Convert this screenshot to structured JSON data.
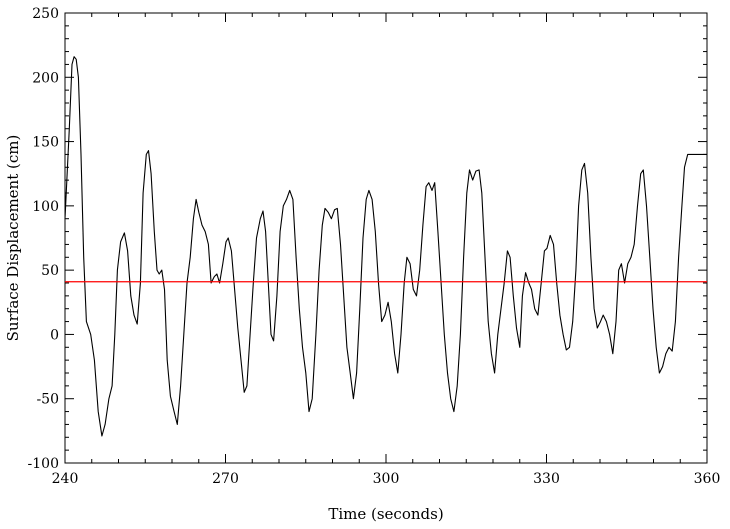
{
  "chart_data": {
    "type": "line",
    "title": "",
    "xlabel": "Time (seconds)",
    "ylabel": "Surface Displacement (cm)",
    "xlim": [
      240,
      360
    ],
    "ylim": [
      -100,
      250
    ],
    "x_ticks": [
      240,
      270,
      300,
      330,
      360
    ],
    "y_ticks": [
      -100,
      -50,
      0,
      50,
      100,
      150,
      200,
      250
    ],
    "grid": false,
    "reference_line": {
      "y": 41,
      "color": "#ff0000"
    },
    "series": [
      {
        "color": "#000000",
        "points": [
          [
            240.0,
            90
          ],
          [
            240.8,
            160
          ],
          [
            241.3,
            210
          ],
          [
            241.7,
            216
          ],
          [
            242.1,
            214
          ],
          [
            242.5,
            200
          ],
          [
            243.0,
            140
          ],
          [
            243.5,
            60
          ],
          [
            244.0,
            10
          ],
          [
            244.8,
            0
          ],
          [
            245.5,
            -20
          ],
          [
            246.2,
            -60
          ],
          [
            246.9,
            -79
          ],
          [
            247.5,
            -70
          ],
          [
            248.2,
            -50
          ],
          [
            248.8,
            -40
          ],
          [
            249.3,
            0
          ],
          [
            249.8,
            50
          ],
          [
            250.4,
            72
          ],
          [
            251.1,
            79
          ],
          [
            251.7,
            65
          ],
          [
            252.3,
            30
          ],
          [
            252.9,
            15
          ],
          [
            253.5,
            8
          ],
          [
            254.1,
            40
          ],
          [
            254.6,
            110
          ],
          [
            255.2,
            140
          ],
          [
            255.6,
            143
          ],
          [
            256.1,
            125
          ],
          [
            256.7,
            80
          ],
          [
            257.2,
            50
          ],
          [
            257.6,
            47
          ],
          [
            258.1,
            50
          ],
          [
            258.6,
            35
          ],
          [
            259.1,
            -20
          ],
          [
            259.7,
            -48
          ],
          [
            260.4,
            -60
          ],
          [
            261.0,
            -70
          ],
          [
            261.6,
            -40
          ],
          [
            262.2,
            0
          ],
          [
            262.8,
            40
          ],
          [
            263.4,
            60
          ],
          [
            264.0,
            90
          ],
          [
            264.5,
            105
          ],
          [
            265.0,
            95
          ],
          [
            265.6,
            85
          ],
          [
            266.2,
            80
          ],
          [
            266.8,
            70
          ],
          [
            267.3,
            40
          ],
          [
            267.9,
            45
          ],
          [
            268.4,
            47
          ],
          [
            268.9,
            40
          ],
          [
            269.5,
            55
          ],
          [
            270.1,
            72
          ],
          [
            270.5,
            75
          ],
          [
            271.1,
            65
          ],
          [
            271.7,
            35
          ],
          [
            272.3,
            5
          ],
          [
            272.9,
            -20
          ],
          [
            273.5,
            -45
          ],
          [
            274.0,
            -40
          ],
          [
            274.6,
            0
          ],
          [
            275.2,
            40
          ],
          [
            275.8,
            75
          ],
          [
            276.5,
            90
          ],
          [
            277.0,
            96
          ],
          [
            277.5,
            80
          ],
          [
            278.0,
            40
          ],
          [
            278.5,
            0
          ],
          [
            279.0,
            -5
          ],
          [
            279.6,
            30
          ],
          [
            280.2,
            80
          ],
          [
            280.8,
            100
          ],
          [
            281.4,
            105
          ],
          [
            282.0,
            112
          ],
          [
            282.6,
            105
          ],
          [
            283.2,
            60
          ],
          [
            283.8,
            20
          ],
          [
            284.4,
            -10
          ],
          [
            285.0,
            -30
          ],
          [
            285.6,
            -60
          ],
          [
            286.2,
            -50
          ],
          [
            286.9,
            0
          ],
          [
            287.5,
            50
          ],
          [
            288.1,
            85
          ],
          [
            288.6,
            98
          ],
          [
            289.2,
            95
          ],
          [
            289.8,
            90
          ],
          [
            290.4,
            97
          ],
          [
            290.9,
            98
          ],
          [
            291.5,
            70
          ],
          [
            292.1,
            30
          ],
          [
            292.7,
            -10
          ],
          [
            293.3,
            -30
          ],
          [
            293.9,
            -50
          ],
          [
            294.5,
            -30
          ],
          [
            295.1,
            20
          ],
          [
            295.7,
            75
          ],
          [
            296.3,
            105
          ],
          [
            296.8,
            112
          ],
          [
            297.4,
            105
          ],
          [
            298.0,
            80
          ],
          [
            298.6,
            40
          ],
          [
            299.2,
            10
          ],
          [
            299.8,
            15
          ],
          [
            300.4,
            25
          ],
          [
            301.0,
            10
          ],
          [
            301.6,
            -15
          ],
          [
            302.2,
            -30
          ],
          [
            302.8,
            0
          ],
          [
            303.4,
            40
          ],
          [
            303.9,
            60
          ],
          [
            304.5,
            55
          ],
          [
            305.1,
            35
          ],
          [
            305.7,
            30
          ],
          [
            306.3,
            50
          ],
          [
            306.9,
            85
          ],
          [
            307.5,
            115
          ],
          [
            308.0,
            118
          ],
          [
            308.6,
            112
          ],
          [
            309.1,
            118
          ],
          [
            309.7,
            80
          ],
          [
            310.3,
            40
          ],
          [
            310.9,
            0
          ],
          [
            311.5,
            -30
          ],
          [
            312.1,
            -50
          ],
          [
            312.7,
            -60
          ],
          [
            313.3,
            -40
          ],
          [
            313.9,
            0
          ],
          [
            314.5,
            60
          ],
          [
            315.1,
            110
          ],
          [
            315.6,
            128
          ],
          [
            316.2,
            120
          ],
          [
            316.8,
            127
          ],
          [
            317.4,
            128
          ],
          [
            317.9,
            110
          ],
          [
            318.5,
            60
          ],
          [
            319.1,
            10
          ],
          [
            319.7,
            -15
          ],
          [
            320.3,
            -30
          ],
          [
            320.9,
            0
          ],
          [
            321.5,
            20
          ],
          [
            322.1,
            40
          ],
          [
            322.7,
            65
          ],
          [
            323.2,
            60
          ],
          [
            323.8,
            30
          ],
          [
            324.4,
            5
          ],
          [
            325.0,
            -10
          ],
          [
            325.5,
            30
          ],
          [
            326.1,
            48
          ],
          [
            326.7,
            40
          ],
          [
            327.2,
            35
          ],
          [
            327.8,
            20
          ],
          [
            328.4,
            15
          ],
          [
            329.0,
            40
          ],
          [
            329.6,
            65
          ],
          [
            330.1,
            67
          ],
          [
            330.7,
            77
          ],
          [
            331.3,
            70
          ],
          [
            331.9,
            40
          ],
          [
            332.5,
            15
          ],
          [
            333.1,
            0
          ],
          [
            333.7,
            -12
          ],
          [
            334.3,
            -10
          ],
          [
            334.9,
            10
          ],
          [
            335.5,
            50
          ],
          [
            336.0,
            100
          ],
          [
            336.6,
            128
          ],
          [
            337.1,
            133
          ],
          [
            337.7,
            110
          ],
          [
            338.3,
            60
          ],
          [
            338.9,
            20
          ],
          [
            339.5,
            5
          ],
          [
            340.1,
            10
          ],
          [
            340.6,
            15
          ],
          [
            341.2,
            10
          ],
          [
            341.8,
            0
          ],
          [
            342.4,
            -15
          ],
          [
            343.0,
            10
          ],
          [
            343.5,
            50
          ],
          [
            344.0,
            55
          ],
          [
            344.6,
            40
          ],
          [
            345.2,
            55
          ],
          [
            345.8,
            60
          ],
          [
            346.4,
            70
          ],
          [
            347.0,
            100
          ],
          [
            347.6,
            125
          ],
          [
            348.1,
            128
          ],
          [
            348.7,
            100
          ],
          [
            349.3,
            60
          ],
          [
            349.9,
            20
          ],
          [
            350.5,
            -10
          ],
          [
            351.1,
            -30
          ],
          [
            351.7,
            -25
          ],
          [
            352.3,
            -15
          ],
          [
            352.9,
            -10
          ],
          [
            353.5,
            -13
          ],
          [
            354.1,
            10
          ],
          [
            354.7,
            60
          ],
          [
            355.3,
            100
          ],
          [
            355.8,
            130
          ],
          [
            356.4,
            140
          ],
          [
            357.0,
            140
          ],
          [
            360.0,
            140
          ]
        ]
      }
    ]
  }
}
